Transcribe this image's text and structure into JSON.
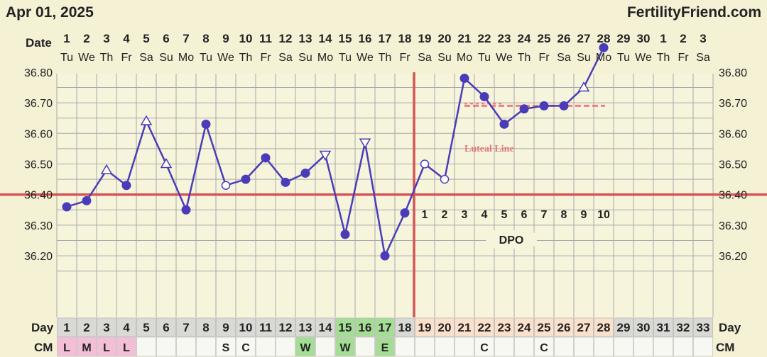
{
  "header": {
    "date": "Apr 01, 2025",
    "brand": "FertilityFriend.com"
  },
  "labels": {
    "date_row": "Date",
    "day_row": "Day",
    "cm_row": "CM",
    "dpo": "DPO",
    "luteal": "Luteal Line"
  },
  "colors": {
    "background": "#f5f1d5",
    "grid": "#a8a8a8",
    "line": "#4a3cb8",
    "coverline": "#d45555",
    "ovulation_line": "#d45555",
    "luteal_line": "#ef8080",
    "menses_pink": "#f2bfd6",
    "fertile_green": "#a6dd96",
    "luteal_peach": "#fbe0cc",
    "cell_blank": "#f8f8f3"
  },
  "chart_data": {
    "type": "line",
    "title": "",
    "xlabel": "Day",
    "ylabel": "",
    "ylim": [
      36.15,
      36.9
    ],
    "yticks": [
      "36.20",
      "36.30",
      "36.40",
      "36.50",
      "36.60",
      "36.70",
      "36.80"
    ],
    "grid": true,
    "dates": [
      "1",
      "2",
      "3",
      "4",
      "5",
      "6",
      "7",
      "8",
      "9",
      "10",
      "11",
      "12",
      "13",
      "14",
      "15",
      "16",
      "17",
      "18",
      "19",
      "20",
      "21",
      "22",
      "23",
      "24",
      "25",
      "26",
      "27",
      "28",
      "29",
      "30",
      "1",
      "2",
      "3"
    ],
    "weekdays": [
      "Tu",
      "We",
      "Th",
      "Fr",
      "Sa",
      "Su",
      "Mo",
      "Tu",
      "We",
      "Th",
      "Fr",
      "Sa",
      "Su",
      "Mo",
      "Tu",
      "We",
      "Th",
      "Fr",
      "Sa",
      "Su",
      "Mo",
      "Tu",
      "We",
      "Th",
      "Fr",
      "Sa",
      "Su",
      "Mo",
      "Tu",
      "We",
      "Th",
      "Fr",
      "Sa"
    ],
    "cycle_days": [
      "1",
      "2",
      "3",
      "4",
      "5",
      "6",
      "7",
      "8",
      "9",
      "10",
      "11",
      "12",
      "13",
      "14",
      "15",
      "16",
      "17",
      "18",
      "19",
      "20",
      "21",
      "22",
      "23",
      "24",
      "25",
      "26",
      "27",
      "28",
      "29",
      "30",
      "31",
      "32",
      "33"
    ],
    "temperatures": [
      {
        "day": 1,
        "value": 36.36,
        "marker": "dot"
      },
      {
        "day": 2,
        "value": 36.38,
        "marker": "dot"
      },
      {
        "day": 3,
        "value": 36.48,
        "marker": "triangle-up"
      },
      {
        "day": 4,
        "value": 36.43,
        "marker": "dot"
      },
      {
        "day": 5,
        "value": 36.64,
        "marker": "triangle-up"
      },
      {
        "day": 6,
        "value": 36.5,
        "marker": "triangle-up"
      },
      {
        "day": 7,
        "value": 36.35,
        "marker": "dot"
      },
      {
        "day": 8,
        "value": 36.63,
        "marker": "dot"
      },
      {
        "day": 9,
        "value": 36.43,
        "marker": "open-circle"
      },
      {
        "day": 10,
        "value": 36.45,
        "marker": "dot"
      },
      {
        "day": 11,
        "value": 36.52,
        "marker": "dot"
      },
      {
        "day": 12,
        "value": 36.44,
        "marker": "dot"
      },
      {
        "day": 13,
        "value": 36.47,
        "marker": "dot"
      },
      {
        "day": 14,
        "value": 36.53,
        "marker": "triangle-down"
      },
      {
        "day": 15,
        "value": 36.27,
        "marker": "dot"
      },
      {
        "day": 16,
        "value": 36.57,
        "marker": "triangle-down"
      },
      {
        "day": 17,
        "value": 36.2,
        "marker": "dot"
      },
      {
        "day": 18,
        "value": 36.34,
        "marker": "dot"
      },
      {
        "day": 19,
        "value": 36.5,
        "marker": "open-circle"
      },
      {
        "day": 20,
        "value": 36.45,
        "marker": "open-circle"
      },
      {
        "day": 21,
        "value": 36.78,
        "marker": "dot"
      },
      {
        "day": 22,
        "value": 36.72,
        "marker": "dot"
      },
      {
        "day": 23,
        "value": 36.63,
        "marker": "dot"
      },
      {
        "day": 24,
        "value": 36.68,
        "marker": "dot"
      },
      {
        "day": 25,
        "value": 36.69,
        "marker": "dot"
      },
      {
        "day": 26,
        "value": 36.69,
        "marker": "dot"
      },
      {
        "day": 27,
        "value": 36.75,
        "marker": "triangle-up"
      },
      {
        "day": 28,
        "value": 36.88,
        "marker": "dot"
      }
    ],
    "coverline": 36.4,
    "ovulation_day": 18,
    "luteal_line": {
      "value": 36.69,
      "from_day": 21,
      "to_day": 28
    },
    "dpo": [
      {
        "day": 19,
        "label": "1"
      },
      {
        "day": 20,
        "label": "2"
      },
      {
        "day": 21,
        "label": "3"
      },
      {
        "day": 22,
        "label": "4"
      },
      {
        "day": 23,
        "label": "5"
      },
      {
        "day": 24,
        "label": "6"
      },
      {
        "day": 25,
        "label": "7"
      },
      {
        "day": 26,
        "label": "8"
      },
      {
        "day": 27,
        "label": "9"
      },
      {
        "day": 28,
        "label": "10"
      }
    ],
    "day_cell_fill": [
      "gray",
      "gray",
      "gray",
      "gray",
      "gray",
      "gray",
      "gray",
      "gray",
      "gray",
      "gray",
      "gray",
      "gray",
      "gray",
      "gray",
      "green",
      "green",
      "green",
      "gray",
      "peach",
      "peach",
      "peach",
      "peach",
      "peach",
      "peach",
      "peach",
      "peach",
      "peach",
      "peach",
      "gray",
      "gray",
      "gray",
      "gray",
      "gray"
    ],
    "cervical_mucus": [
      {
        "day": 1,
        "label": "L",
        "fill": "pink"
      },
      {
        "day": 2,
        "label": "M",
        "fill": "pink"
      },
      {
        "day": 3,
        "label": "L",
        "fill": "pink"
      },
      {
        "day": 4,
        "label": "L",
        "fill": "pink"
      },
      {
        "day": 5,
        "label": "",
        "fill": "blank"
      },
      {
        "day": 6,
        "label": "",
        "fill": "blank"
      },
      {
        "day": 7,
        "label": "",
        "fill": "blank"
      },
      {
        "day": 8,
        "label": "",
        "fill": "blank"
      },
      {
        "day": 9,
        "label": "S",
        "fill": "blank"
      },
      {
        "day": 10,
        "label": "C",
        "fill": "blank"
      },
      {
        "day": 11,
        "label": "",
        "fill": "blank"
      },
      {
        "day": 12,
        "label": "",
        "fill": "blank"
      },
      {
        "day": 13,
        "label": "W",
        "fill": "green"
      },
      {
        "day": 14,
        "label": "",
        "fill": "blank"
      },
      {
        "day": 15,
        "label": "W",
        "fill": "green"
      },
      {
        "day": 16,
        "label": "",
        "fill": "blank"
      },
      {
        "day": 17,
        "label": "E",
        "fill": "green"
      },
      {
        "day": 18,
        "label": "",
        "fill": "blank"
      },
      {
        "day": 19,
        "label": "",
        "fill": "blank"
      },
      {
        "day": 20,
        "label": "",
        "fill": "blank"
      },
      {
        "day": 21,
        "label": "",
        "fill": "blank"
      },
      {
        "day": 22,
        "label": "C",
        "fill": "blank"
      },
      {
        "day": 23,
        "label": "",
        "fill": "blank"
      },
      {
        "day": 24,
        "label": "",
        "fill": "blank"
      },
      {
        "day": 25,
        "label": "C",
        "fill": "blank"
      },
      {
        "day": 26,
        "label": "",
        "fill": "blank"
      },
      {
        "day": 27,
        "label": "",
        "fill": "blank"
      },
      {
        "day": 28,
        "label": "",
        "fill": "blank"
      },
      {
        "day": 29,
        "label": "",
        "fill": "blank"
      },
      {
        "day": 30,
        "label": "",
        "fill": "blank"
      },
      {
        "day": 31,
        "label": "",
        "fill": "blank"
      },
      {
        "day": 32,
        "label": "",
        "fill": "blank"
      },
      {
        "day": 33,
        "label": "",
        "fill": "blank"
      }
    ]
  }
}
